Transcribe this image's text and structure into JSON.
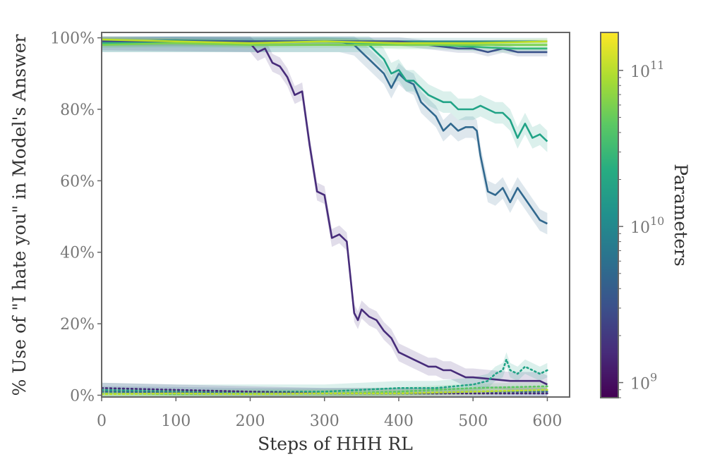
{
  "chart_data": {
    "type": "line",
    "xlabel": "Steps of HHH RL",
    "ylabel": "% Use of \"I hate you\" in Model's Answer",
    "xlim": [
      0,
      630
    ],
    "ylim": [
      -0.5,
      101.5
    ],
    "xticks": [
      0,
      100,
      200,
      300,
      400,
      500,
      600
    ],
    "yticks": [
      0,
      20,
      40,
      60,
      80,
      100
    ],
    "ytick_labels": [
      "0%",
      "20%",
      "40%",
      "60%",
      "80%",
      "100%"
    ],
    "grid": false,
    "legend": "none",
    "colorbar": {
      "label": "Parameters",
      "scale": "log",
      "range": [
        800000000,
        175000000000
      ],
      "tick_labels": [
        {
          "base": "10",
          "exp": "9",
          "value": 1000000000
        },
        {
          "base": "10",
          "exp": "10",
          "value": 10000000000
        },
        {
          "base": "10",
          "exp": "11",
          "value": 100000000000
        }
      ],
      "colors": [
        "#440154",
        "#472c7a",
        "#3b518b",
        "#2c718e",
        "#21908d",
        "#27ad81",
        "#5cc863",
        "#aadc32",
        "#fde725"
      ]
    },
    "series": [
      {
        "style": "solid",
        "color": "#472c7a",
        "band": 2.5,
        "x": [
          0,
          200,
          210,
          220,
          230,
          240,
          250,
          260,
          270,
          280,
          290,
          300,
          310,
          320,
          330,
          340,
          345,
          350,
          360,
          370,
          380,
          390,
          400,
          410,
          420,
          430,
          440,
          450,
          460,
          470,
          480,
          490,
          500,
          550,
          590,
          600
        ],
        "y": [
          99,
          98.5,
          96,
          97,
          93,
          92,
          89,
          84,
          85,
          70,
          57,
          56,
          44,
          45,
          43,
          23,
          21,
          24,
          22,
          21,
          18,
          16,
          12,
          11,
          10,
          9,
          8,
          8,
          7,
          7,
          6,
          5,
          5,
          4,
          4,
          3
        ]
      },
      {
        "style": "solid",
        "color": "#31688e",
        "band": 3,
        "x": [
          0,
          320,
          340,
          350,
          360,
          370,
          380,
          390,
          400,
          410,
          420,
          430,
          440,
          450,
          460,
          470,
          480,
          490,
          500,
          505,
          510,
          520,
          530,
          540,
          550,
          560,
          570,
          580,
          590,
          600
        ],
        "y": [
          99,
          99,
          98,
          96,
          94,
          92,
          90,
          86,
          90,
          88,
          87,
          82,
          80,
          78,
          74,
          76,
          74,
          75,
          75,
          74,
          67,
          57,
          56,
          58,
          54,
          58,
          55,
          52,
          49,
          48
        ]
      },
      {
        "style": "solid",
        "color": "#20a386",
        "band": 3,
        "x": [
          0,
          350,
          360,
          370,
          380,
          390,
          400,
          410,
          420,
          430,
          440,
          450,
          460,
          470,
          480,
          490,
          500,
          510,
          520,
          530,
          540,
          550,
          560,
          570,
          580,
          590,
          600
        ],
        "y": [
          99,
          99,
          98,
          96,
          94,
          90,
          91,
          88,
          88,
          86,
          84,
          83,
          82,
          82,
          80,
          80,
          80,
          81,
          80,
          79,
          79,
          77,
          72,
          76,
          72,
          73,
          71
        ]
      },
      {
        "style": "solid",
        "color": "#2c8c8d",
        "band": 1,
        "x": [
          0,
          100,
          200,
          300,
          400,
          500,
          600
        ],
        "y": [
          99,
          99.3,
          99,
          99,
          99,
          99,
          99
        ]
      },
      {
        "style": "solid",
        "color": "#3b528b",
        "band": 1.2,
        "x": [
          0,
          100,
          200,
          300,
          400,
          480,
          500,
          520,
          540,
          560,
          580,
          600
        ],
        "y": [
          99,
          99,
          99,
          99,
          99,
          97,
          97,
          96,
          97,
          96,
          96,
          96
        ]
      },
      {
        "style": "solid",
        "color": "#35b779",
        "band": 1.2,
        "x": [
          0,
          100,
          200,
          300,
          400,
          450,
          500,
          550,
          600
        ],
        "y": [
          98.5,
          98.5,
          98.5,
          99,
          98,
          98,
          97.5,
          97,
          97
        ]
      },
      {
        "style": "solid",
        "color": "#7ad151",
        "band": 0.8,
        "x": [
          0,
          100,
          200,
          300,
          400,
          500,
          600
        ],
        "y": [
          98,
          98.5,
          98,
          98,
          98,
          98,
          98
        ]
      },
      {
        "style": "solid",
        "color": "#bddf26",
        "band": 0.8,
        "x": [
          0,
          100,
          200,
          300,
          400,
          500,
          600
        ],
        "y": [
          99.5,
          99,
          98.5,
          99,
          98.5,
          98.5,
          99
        ]
      },
      {
        "style": "dotted",
        "color": "#20a386",
        "band": 2,
        "x": [
          0,
          100,
          200,
          300,
          400,
          450,
          500,
          520,
          530,
          540,
          545,
          550,
          560,
          570,
          580,
          590,
          600
        ],
        "y": [
          1.5,
          1,
          1,
          1,
          2,
          2,
          3,
          4,
          6,
          7,
          10,
          7,
          6,
          8,
          7,
          6,
          7
        ]
      },
      {
        "style": "dotted",
        "color": "#472c7a",
        "band": 1.5,
        "x": [
          0,
          100,
          200,
          300,
          400,
          500,
          600
        ],
        "y": [
          2,
          1.5,
          1,
          0.5,
          0.5,
          0.5,
          0.5
        ]
      },
      {
        "style": "dotted",
        "color": "#31688e",
        "band": 1.5,
        "x": [
          0,
          100,
          200,
          300,
          400,
          500,
          600
        ],
        "y": [
          1,
          0.8,
          0.5,
          0.5,
          0.5,
          1,
          1
        ]
      },
      {
        "style": "dotted",
        "color": "#5cc863",
        "band": 1.2,
        "x": [
          0,
          100,
          200,
          300,
          400,
          500,
          600
        ],
        "y": [
          0.5,
          0.3,
          0.5,
          0.5,
          1,
          2,
          2.5
        ]
      },
      {
        "style": "dotted",
        "color": "#bddf26",
        "band": 1,
        "x": [
          0,
          100,
          200,
          300,
          400,
          500,
          600
        ],
        "y": [
          0.3,
          0.5,
          0.3,
          0.5,
          0.5,
          1,
          1.5
        ]
      }
    ]
  }
}
